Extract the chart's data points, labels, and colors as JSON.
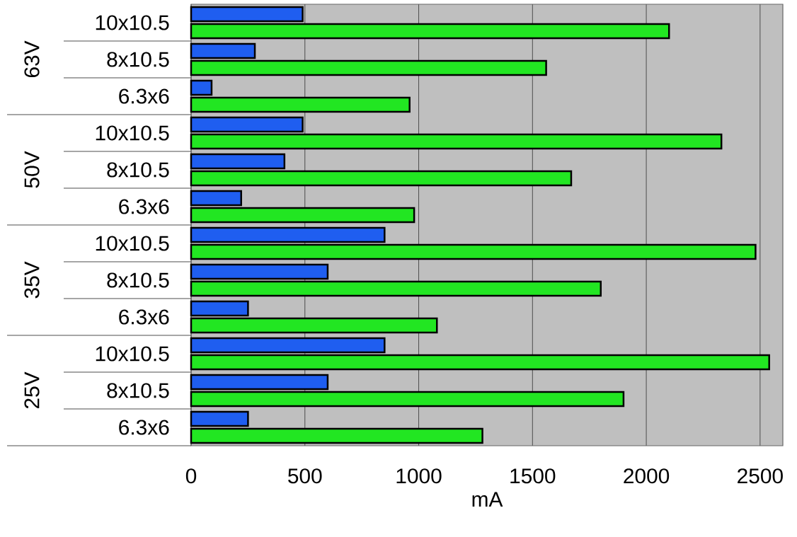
{
  "chart_data": {
    "type": "bar",
    "orientation": "horizontal",
    "categories": [
      "10x10.5",
      "8x10.5",
      "6.3x6",
      "10x10.5",
      "8x10.5",
      "6.3x6",
      "10x10.5",
      "8x10.5",
      "6.3x6",
      "10x10.5",
      "8x10.5",
      "6.3x6"
    ],
    "series": [
      {
        "color": "#1f5ef0",
        "values": [
          490,
          280,
          90,
          490,
          410,
          220,
          850,
          600,
          250,
          850,
          600,
          250
        ]
      },
      {
        "color": "#22e622",
        "values": [
          2100,
          1560,
          960,
          2330,
          1670,
          980,
          2480,
          1800,
          1080,
          2540,
          1900,
          1280
        ]
      }
    ],
    "annotations": [
      "63V",
      "50V",
      "35V",
      "25V"
    ],
    "xlabel": "mA",
    "xlim": [
      0,
      2600
    ],
    "xticks": [
      0,
      500,
      1000,
      1500,
      2000,
      2500
    ],
    "grid": "x"
  }
}
